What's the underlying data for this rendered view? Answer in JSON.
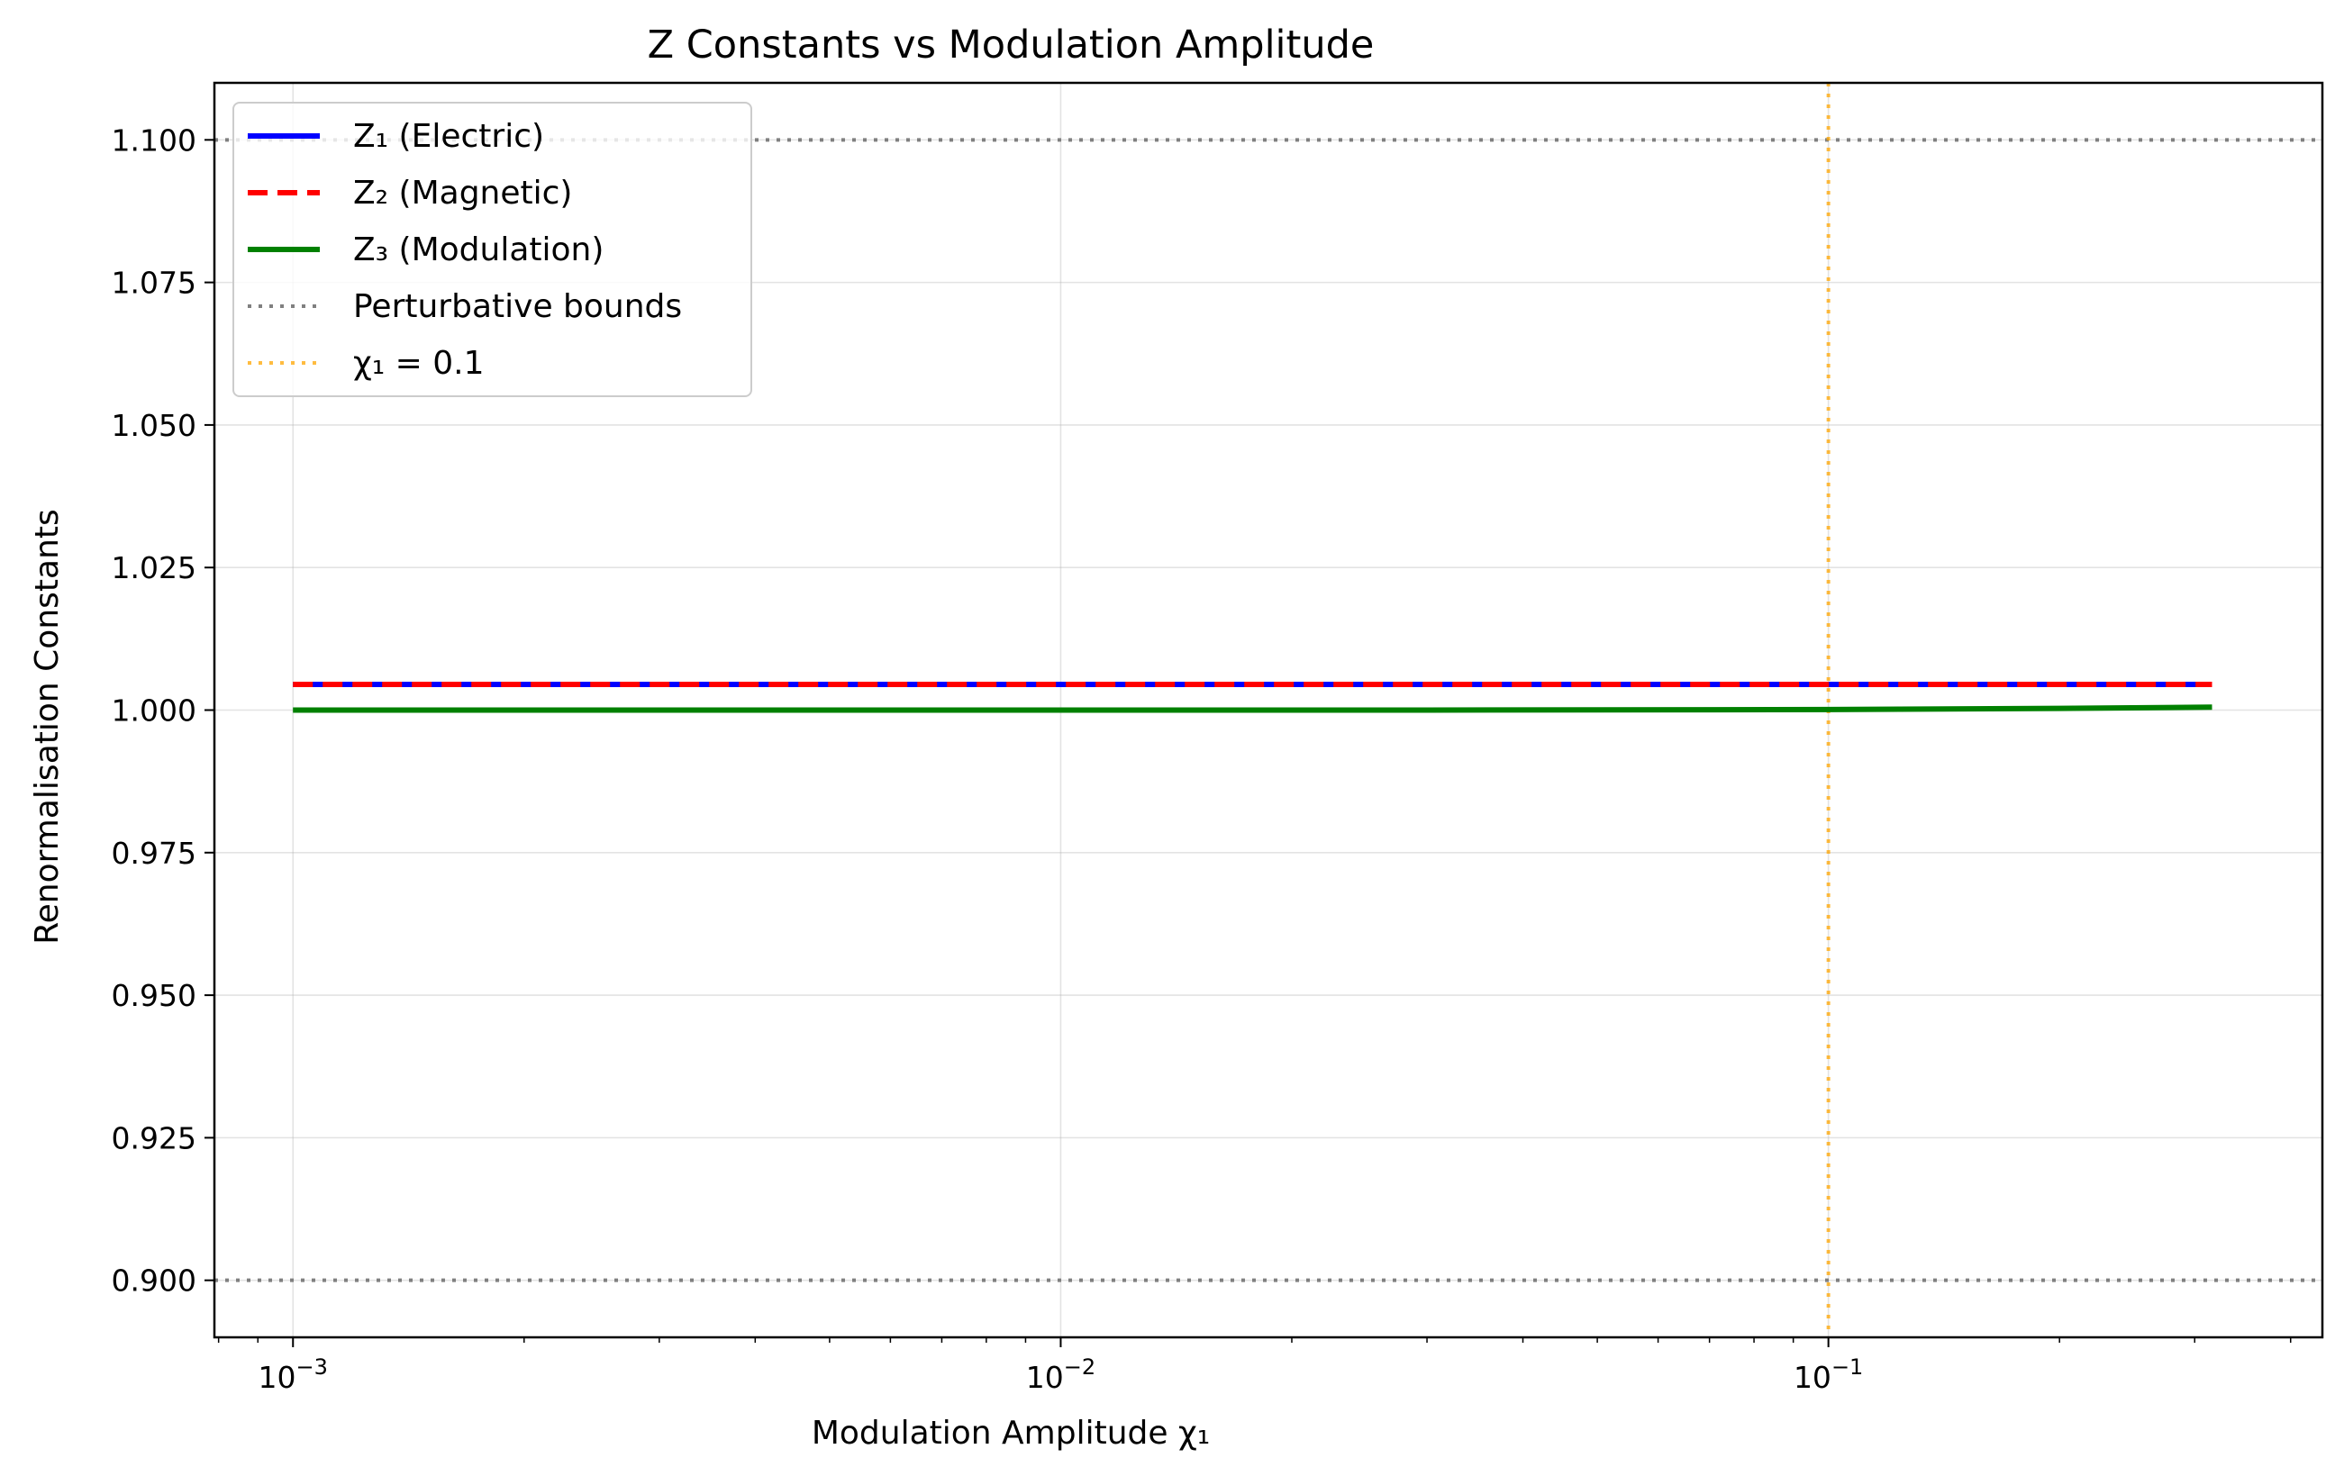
{
  "chart_data": {
    "type": "line",
    "title": "Z Constants vs Modulation Amplitude",
    "xlabel": "Modulation Amplitude χ₁",
    "ylabel": "Renormalisation Constants",
    "xscale": "log",
    "xlim": [
      0.00079,
      0.44
    ],
    "ylim": [
      0.89,
      1.11
    ],
    "yticks": [
      0.9,
      0.925,
      0.95,
      0.975,
      1.0,
      1.025,
      1.05,
      1.075,
      1.1
    ],
    "ytick_labels": [
      "0.900",
      "0.925",
      "0.950",
      "0.975",
      "1.000",
      "1.025",
      "1.050",
      "1.075",
      "1.100"
    ],
    "xticks": [
      {
        "value": 0.001,
        "base": "10",
        "exp": "−3"
      },
      {
        "value": 0.01,
        "base": "10",
        "exp": "−2"
      },
      {
        "value": 0.1,
        "base": "10",
        "exp": "−1"
      }
    ],
    "grid": true,
    "legend_position": "top-left",
    "series": [
      {
        "name": "Z₁ (Electric)",
        "color": "#0000ff",
        "style": "solid",
        "x": [
          0.001,
          0.003,
          0.01,
          0.03,
          0.1,
          0.2,
          0.316
        ],
        "y": [
          1.0045,
          1.0045,
          1.0045,
          1.0045,
          1.0045,
          1.0045,
          1.0045
        ]
      },
      {
        "name": "Z₂ (Magnetic)",
        "color": "#ff0000",
        "style": "dashed",
        "x": [
          0.001,
          0.003,
          0.01,
          0.03,
          0.1,
          0.2,
          0.316
        ],
        "y": [
          1.0045,
          1.0045,
          1.0045,
          1.0045,
          1.0045,
          1.0045,
          1.0045
        ]
      },
      {
        "name": "Z₃ (Modulation)",
        "color": "#008000",
        "style": "solid",
        "x": [
          0.001,
          0.003,
          0.01,
          0.03,
          0.1,
          0.2,
          0.316
        ],
        "y": [
          1.0,
          1.0,
          1.0,
          1.0,
          1.0001,
          1.0003,
          1.0005
        ]
      }
    ],
    "reference_lines": [
      {
        "name": "Perturbative bounds",
        "orientation": "horizontal",
        "values": [
          0.9,
          1.1
        ],
        "color": "#808080",
        "style": "dotted"
      },
      {
        "name": "χ₁ = 0.1",
        "orientation": "vertical",
        "values": [
          0.1
        ],
        "color": "#ffa500",
        "style": "dotted"
      }
    ]
  }
}
